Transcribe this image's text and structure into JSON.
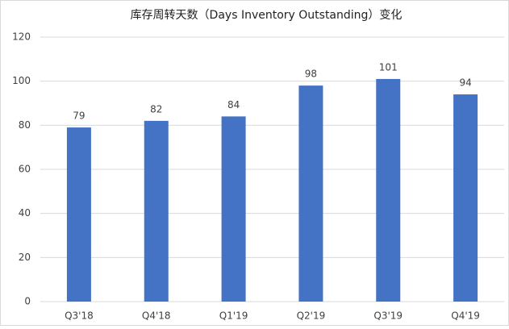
{
  "chart_data": {
    "type": "bar",
    "title": "库存周转天数（Days Inventory Outstanding）变化",
    "categories": [
      "Q3'18",
      "Q4'18",
      "Q1'19",
      "Q2'19",
      "Q3'19",
      "Q4'19"
    ],
    "values": [
      79,
      82,
      84,
      98,
      101,
      94
    ],
    "color": "#4472c4",
    "ylim": [
      0,
      120
    ],
    "yticks": [
      0,
      20,
      40,
      60,
      80,
      100,
      120
    ],
    "grid": true
  }
}
